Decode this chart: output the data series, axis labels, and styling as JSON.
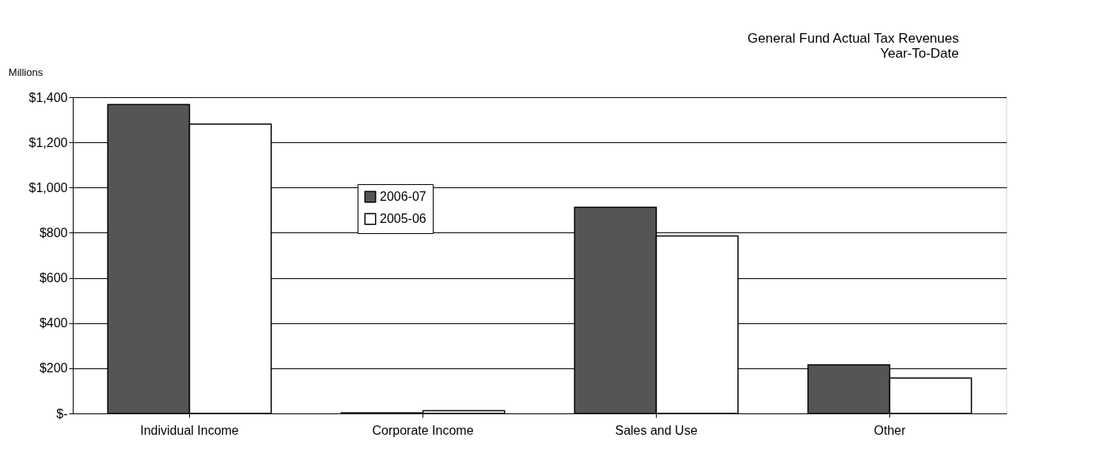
{
  "chart_data": {
    "type": "bar",
    "title": [
      "General Fund Actual Tax Revenues",
      "Year-To-Date"
    ],
    "ylabel": "Millions",
    "categories": [
      "Individual Income",
      "Corporate Income",
      "Sales and Use",
      "Other"
    ],
    "series": [
      {
        "name": "2006-07",
        "color": "#555555",
        "values": [
          1368,
          3,
          913,
          215
        ]
      },
      {
        "name": "2005-06",
        "color": "#ffffff",
        "values": [
          1281,
          12,
          786,
          157
        ]
      }
    ],
    "ylim": [
      0,
      1400
    ],
    "yticks": [
      {
        "value": 0,
        "label": "$-"
      },
      {
        "value": 200,
        "label": "$200"
      },
      {
        "value": 400,
        "label": "$400"
      },
      {
        "value": 600,
        "label": "$600"
      },
      {
        "value": 800,
        "label": "$800"
      },
      {
        "value": 1000,
        "label": "$1,000"
      },
      {
        "value": 1200,
        "label": "$1,200"
      },
      {
        "value": 1400,
        "label": "$1,400"
      }
    ],
    "grid": "y",
    "legend": "top left"
  }
}
